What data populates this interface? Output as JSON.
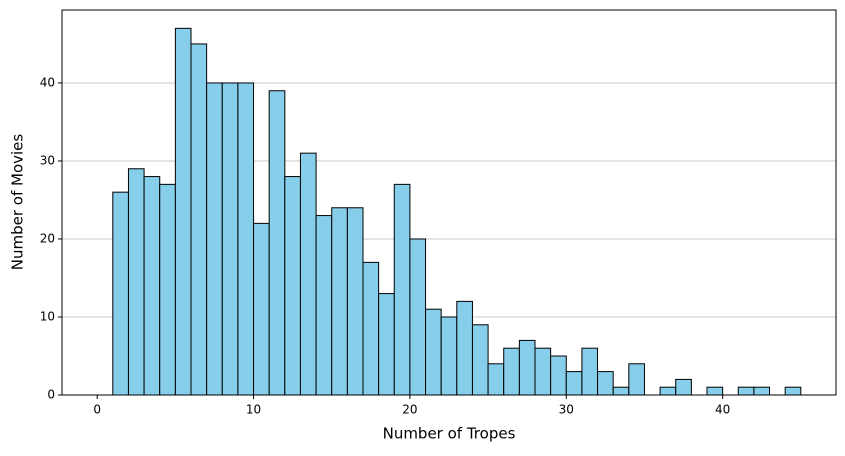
{
  "chart_data": {
    "type": "histogram",
    "x_label": "Number of Tropes",
    "y_label": "Number of Movies",
    "bins": [
      0,
      1,
      2,
      3,
      4,
      5,
      6,
      7,
      8,
      9,
      10,
      11,
      12,
      13,
      14,
      15,
      16,
      17,
      18,
      19,
      20,
      21,
      22,
      23,
      24,
      25,
      26,
      27,
      28,
      29,
      30,
      31,
      32,
      33,
      34,
      35,
      36,
      37,
      38,
      39,
      40,
      41,
      42,
      43,
      44,
      45
    ],
    "values": [
      0,
      26,
      29,
      28,
      27,
      47,
      45,
      40,
      40,
      40,
      22,
      39,
      28,
      31,
      23,
      24,
      24,
      17,
      13,
      27,
      20,
      11,
      10,
      12,
      9,
      4,
      6,
      7,
      6,
      5,
      3,
      6,
      3,
      1,
      4,
      0,
      1,
      2,
      0,
      1,
      0,
      1,
      1,
      0,
      1
    ],
    "color": "#87ceeb",
    "edge_color": "#000000",
    "xlim": [
      -2.25,
      47.25
    ],
    "xticks": [
      0,
      10,
      20,
      30,
      40
    ],
    "ylim": [
      0,
      49.35
    ],
    "yticks": [
      0,
      10,
      20,
      30,
      40
    ],
    "grid": "y"
  }
}
